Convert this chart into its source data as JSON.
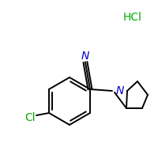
{
  "background_color": "#ffffff",
  "bond_color": "#000000",
  "nitrogen_color": "#0000cc",
  "chlorine_color": "#00aa00",
  "hcl_color": "#00aa00",
  "hcl_text": "HCl",
  "hcl_fontsize": 10,
  "cl_label": "Cl",
  "cl_fontsize": 10,
  "n_label": "N",
  "n_fontsize": 10,
  "nitrile_n_label": "N",
  "nitrile_n_fontsize": 10,
  "figsize": [
    2.0,
    2.0
  ],
  "dpi": 100,
  "lw": 1.4
}
